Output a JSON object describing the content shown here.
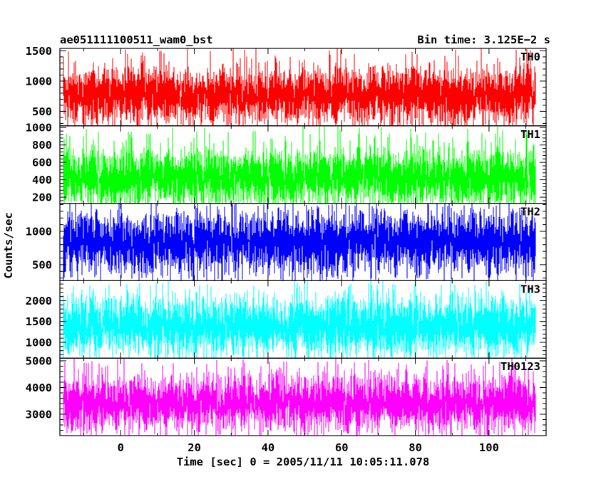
{
  "header": {
    "left_title": "ae051111100511_wam0_bst",
    "right_title": "Bin time: 3.125E−2 s"
  },
  "chart_data": {
    "type": "line",
    "ylabel": "Counts/sec",
    "xlabel": "Time [sec] 0 = 2005/11/11 10:05:11.078",
    "xlim": [
      -16.5,
      115.5
    ],
    "x_data_range": [
      -15.5,
      112.5
    ],
    "x_ticks": [
      0,
      20,
      40,
      60,
      80,
      100
    ],
    "bin_time_s": 0.03125,
    "grid": false,
    "panels": [
      {
        "label": "TH0",
        "color": "#ff0000",
        "ylim": [
          260,
          1540
        ],
        "y_ticks": [
          500,
          1000,
          1500
        ],
        "mean": 770,
        "typical_range": [
          300,
          1250
        ],
        "extremes": [
          200,
          1540
        ]
      },
      {
        "label": "TH1",
        "color": "#00ff00",
        "ylim": [
          130,
          1020
        ],
        "y_ticks": [
          200,
          400,
          600,
          800,
          1000
        ],
        "mean": 430,
        "typical_range": [
          170,
          850
        ],
        "extremes": [
          130,
          1020
        ]
      },
      {
        "label": "TH2",
        "color": "#0000ff",
        "ylim": [
          260,
          1420
        ],
        "y_ticks": [
          500,
          1000
        ],
        "mean": 830,
        "typical_range": [
          360,
          1330
        ],
        "extremes": [
          260,
          1420
        ]
      },
      {
        "label": "TH3",
        "color": "#00ffff",
        "ylim": [
          620,
          2480
        ],
        "y_ticks": [
          1000,
          1500,
          2000
        ],
        "mean": 1390,
        "typical_range": [
          760,
          2250
        ],
        "extremes": [
          620,
          2480
        ]
      },
      {
        "label": "TH0123",
        "color": "#ff00ff",
        "ylim": [
          2200,
          5100
        ],
        "y_ticks": [
          3000,
          4000,
          5000
        ],
        "mean": 3430,
        "typical_range": [
          2550,
          4700
        ],
        "extremes": [
          2250,
          5100
        ]
      }
    ]
  }
}
